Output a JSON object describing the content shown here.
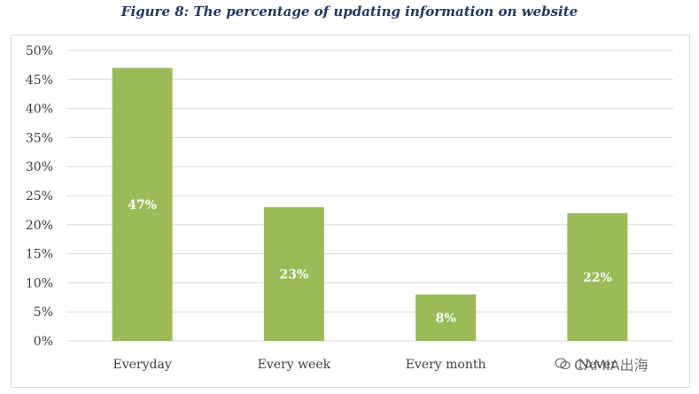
{
  "title": "Figure 8: The percentage of updating information on website",
  "watermark": "CAMIA出海",
  "colors": {
    "bar": "#9bbb59",
    "grid": "#d9d9d9",
    "axis_text": "#404040",
    "title": "#1f3864"
  },
  "chart_data": {
    "type": "bar",
    "title": "Figure 8: The percentage of updating information on website",
    "xlabel": "",
    "ylabel": "",
    "ylim": [
      0,
      50
    ],
    "ytick_step": 5,
    "ytick_format": "percent",
    "grid": true,
    "legend": "none",
    "categories": [
      "Everyday",
      "Every week",
      "Every month",
      "Never"
    ],
    "values": [
      47,
      23,
      8,
      22
    ],
    "data_labels": [
      "47%",
      "23%",
      "8%",
      "22%"
    ]
  }
}
